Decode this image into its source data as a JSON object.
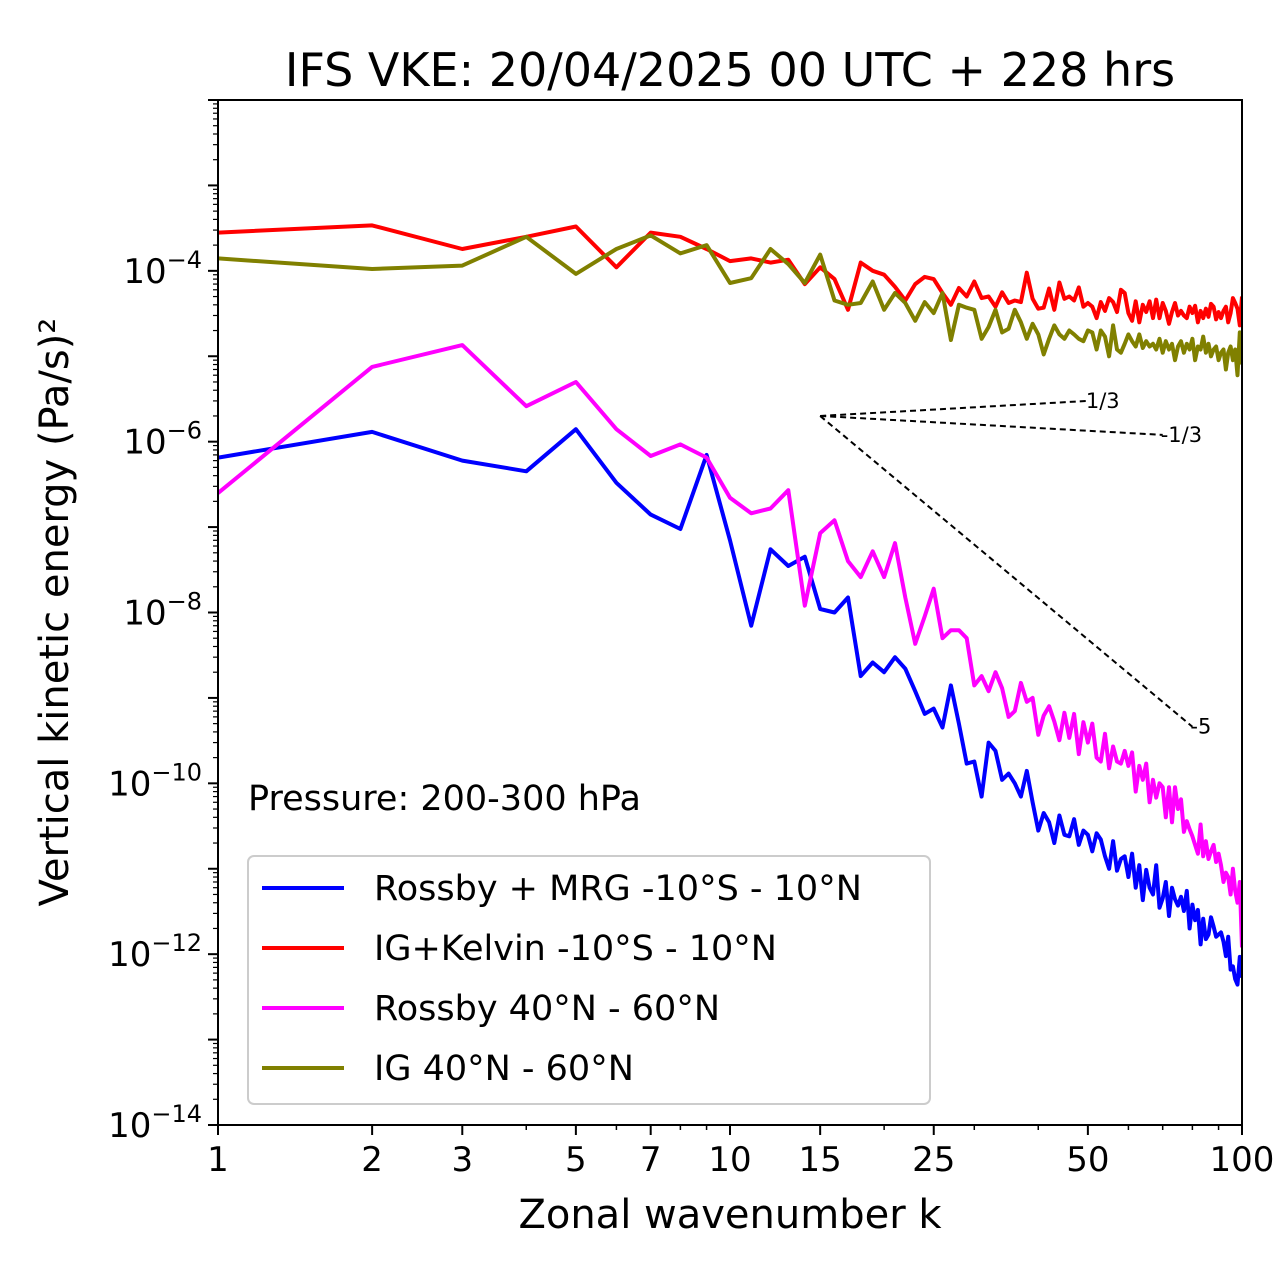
{
  "chart_data": {
    "type": "line",
    "title": "IFS VKE: 20/04/2025 00 UTC + 228 hrs",
    "xlabel": "Zonal wavenumber k",
    "ylabel": "Vertical kinetic energy (Pa/s)²",
    "xscale": "log",
    "yscale": "log",
    "xlim": [
      1,
      100
    ],
    "ylim": [
      1e-14,
      0.01
    ],
    "grid": false,
    "legend_position": "lower-left",
    "x_ticks": [
      {
        "value": 1,
        "label": "1"
      },
      {
        "value": 2,
        "label": "2"
      },
      {
        "value": 3,
        "label": "3"
      },
      {
        "value": 5,
        "label": "5"
      },
      {
        "value": 7,
        "label": "7"
      },
      {
        "value": 10,
        "label": "10"
      },
      {
        "value": 15,
        "label": "15"
      },
      {
        "value": 25,
        "label": "25"
      },
      {
        "value": 50,
        "label": "50"
      },
      {
        "value": 100,
        "label": "100"
      }
    ],
    "y_ticks": [
      {
        "value": -4,
        "base": "10",
        "exp": "−4"
      },
      {
        "value": -6,
        "base": "10",
        "exp": "−6"
      },
      {
        "value": -8,
        "base": "10",
        "exp": "−8"
      },
      {
        "value": -10,
        "base": "10",
        "exp": "−10"
      },
      {
        "value": -12,
        "base": "10",
        "exp": "−12"
      },
      {
        "value": -14,
        "base": "10",
        "exp": "−14"
      }
    ],
    "annotation": "Pressure: 200-300 hPa",
    "reference_lines": [
      {
        "label": "1/3",
        "slope": 0.3333,
        "x": [
          15,
          50
        ],
        "y": [
          2e-06,
          3e-06
        ]
      },
      {
        "label": "-1/3",
        "slope": -0.3333,
        "x": [
          15,
          70
        ],
        "y": [
          2e-06,
          1.2e-06
        ]
      },
      {
        "label": "-5",
        "slope": -5,
        "x": [
          15,
          80
        ],
        "y": [
          2e-06,
          4.6e-10
        ]
      }
    ],
    "series": [
      {
        "name": "Rossby + MRG -10°S - 10°N",
        "color": "#0000ff",
        "x": [
          1,
          2,
          3,
          4,
          5,
          6,
          7,
          8,
          9,
          10,
          11,
          12,
          13,
          14,
          15,
          16,
          17,
          18,
          19,
          20,
          21,
          22,
          23,
          24,
          25,
          26,
          27,
          28,
          29,
          30,
          31,
          32,
          33,
          34,
          35,
          36,
          37,
          38,
          39,
          40,
          41,
          42,
          43,
          44,
          45,
          46,
          47,
          48,
          49,
          50,
          51,
          52,
          53,
          54,
          55,
          56,
          57,
          58,
          59,
          60,
          61,
          62,
          63,
          64,
          65,
          66,
          67,
          68,
          69,
          70,
          71,
          72,
          73,
          74,
          75,
          76,
          77,
          78,
          79,
          80,
          81,
          82,
          83,
          84,
          85,
          86,
          87,
          88,
          89,
          90,
          91,
          92,
          93,
          94,
          95,
          96,
          97,
          98,
          99,
          100
        ],
        "y": [
          6.5e-07,
          1.3e-06,
          6e-07,
          4.5e-07,
          1.4e-06,
          3.3e-07,
          1.4e-07,
          9.5e-08,
          7e-07,
          7e-08,
          7e-09,
          5.5e-08,
          3.5e-08,
          4.5e-08,
          1.1e-08,
          1e-08,
          1.5e-08,
          1.8e-09,
          2.6e-09,
          2e-09,
          3e-09,
          2.2e-09,
          1.2e-09,
          6.5e-10,
          7.5e-10,
          4.5e-10,
          1.4e-09,
          5e-10,
          1.7e-10,
          1.8e-10,
          7e-11,
          3e-10,
          2.4e-10,
          1.1e-10,
          1.3e-10,
          1e-10,
          7e-11,
          1.4e-10,
          6e-11,
          2.8e-11,
          4.5e-11,
          3.5e-11,
          2e-11,
          4.2e-11,
          2.5e-11,
          2.4e-11,
          3.8e-11,
          1.9e-11,
          2.8e-11,
          2.5e-11,
          1.6e-11,
          2.6e-11,
          2.2e-11,
          1.4e-11,
          1e-11,
          2.1e-11,
          9.5e-12,
          1.3e-11,
          1.4e-11,
          8e-12,
          1.5e-11,
          6e-12,
          1.1e-11,
          4.3e-12,
          9.7e-12,
          6e-12,
          5e-12,
          1.1e-11,
          3.5e-12,
          4.5e-12,
          7e-12,
          2.8e-12,
          6e-12,
          4.4e-12,
          3.7e-12,
          4.7e-12,
          3.2e-12,
          5.5e-12,
          2e-12,
          3.8e-12,
          2.5e-12,
          3.3e-12,
          1.3e-12,
          2.6e-12,
          1.5e-12,
          1.7e-12,
          2.7e-12,
          2.1e-12,
          1.6e-12,
          1.7e-12,
          1.8e-12,
          1.4e-12,
          9.5e-13,
          1.6e-12,
          6.6e-13,
          7.2e-13,
          5.1e-13,
          4.4e-13,
          9.3e-13,
          5.3e-13
        ]
      },
      {
        "name": "IG+Kelvin -10°S - 10°N",
        "color": "#ff0000",
        "x": [
          1,
          2,
          3,
          4,
          5,
          6,
          7,
          8,
          9,
          10,
          11,
          12,
          13,
          14,
          15,
          16,
          17,
          18,
          19,
          20,
          21,
          22,
          23,
          24,
          25,
          26,
          27,
          28,
          29,
          30,
          31,
          32,
          33,
          34,
          35,
          36,
          37,
          38,
          39,
          40,
          41,
          42,
          43,
          44,
          45,
          46,
          47,
          48,
          49,
          50,
          51,
          52,
          53,
          54,
          55,
          56,
          57,
          58,
          59,
          60,
          61,
          62,
          63,
          64,
          65,
          66,
          67,
          68,
          69,
          70,
          71,
          72,
          73,
          74,
          75,
          76,
          77,
          78,
          79,
          80,
          81,
          82,
          83,
          84,
          85,
          86,
          87,
          88,
          89,
          90,
          91,
          92,
          93,
          94,
          95,
          96,
          97,
          98,
          99,
          100
        ],
        "y": [
          0.00028,
          0.00034,
          0.00018,
          0.00025,
          0.00033,
          0.00011,
          0.00028,
          0.00025,
          0.00018,
          0.00013,
          0.00014,
          0.000125,
          0.000135,
          7e-05,
          0.00011,
          8e-05,
          3.5e-05,
          0.000125,
          0.0001,
          9e-05,
          6.5e-05,
          4.5e-05,
          7e-05,
          8.5e-05,
          8e-05,
          5.5e-05,
          4e-05,
          6.3e-05,
          5e-05,
          7.5e-05,
          4.8e-05,
          5e-05,
          3.8e-05,
          5.6e-05,
          4.2e-05,
          4.5e-05,
          4.3e-05,
          9.5e-05,
          4.7e-05,
          3.6e-05,
          3.7e-05,
          6.2e-05,
          3.5e-05,
          7.3e-05,
          4.7e-05,
          5e-05,
          4.5e-05,
          6.4e-05,
          3.8e-05,
          4.2e-05,
          3.8e-05,
          2.8e-05,
          4.3e-05,
          3.4e-05,
          4.8e-05,
          4.3e-05,
          3.3e-05,
          6e-05,
          5.5e-05,
          3.2e-05,
          2.6e-05,
          4.4e-05,
          2.5e-05,
          4e-05,
          3.3e-05,
          4.4e-05,
          2.8e-05,
          4.6e-05,
          2.8e-05,
          4.2e-05,
          3.4e-05,
          2.4e-05,
          3.3e-05,
          4.2e-05,
          3e-05,
          3.4e-05,
          3e-05,
          2.8e-05,
          3.8e-05,
          3.2e-05,
          3.9e-05,
          2.5e-05,
          3.4e-05,
          2.8e-05,
          3.6e-05,
          2.9e-05,
          4.1e-05,
          3.8e-05,
          2.7e-05,
          3.3e-05,
          2.8e-05,
          3.4e-05,
          3.8e-05,
          2.5e-05,
          3.2e-05,
          4.8e-05,
          4.2e-05,
          3.6e-05,
          2.3e-05,
          5e-05
        ]
      },
      {
        "name": "Rossby 40°N - 60°N",
        "color": "#ff00ff",
        "x": [
          1,
          2,
          3,
          4,
          5,
          6,
          7,
          8,
          9,
          10,
          11,
          12,
          13,
          14,
          15,
          16,
          17,
          18,
          19,
          20,
          21,
          22,
          23,
          24,
          25,
          26,
          27,
          28,
          29,
          30,
          31,
          32,
          33,
          34,
          35,
          36,
          37,
          38,
          39,
          40,
          41,
          42,
          43,
          44,
          45,
          46,
          47,
          48,
          49,
          50,
          51,
          52,
          53,
          54,
          55,
          56,
          57,
          58,
          59,
          60,
          61,
          62,
          63,
          64,
          65,
          66,
          67,
          68,
          69,
          70,
          71,
          72,
          73,
          74,
          75,
          76,
          77,
          78,
          79,
          80,
          81,
          82,
          83,
          84,
          85,
          86,
          87,
          88,
          89,
          90,
          91,
          92,
          93,
          94,
          95,
          96,
          97,
          98,
          99,
          100
        ],
        "y": [
          2.5e-07,
          7.5e-06,
          1.35e-05,
          2.6e-06,
          5e-06,
          1.4e-06,
          6.8e-07,
          9.3e-07,
          6.5e-07,
          2.2e-07,
          1.45e-07,
          1.65e-07,
          2.7e-07,
          1.2e-08,
          8.5e-08,
          1.2e-07,
          4e-08,
          2.6e-08,
          5.2e-08,
          2.6e-08,
          6.5e-08,
          1.5e-08,
          4.3e-09,
          9e-09,
          1.9e-08,
          5e-09,
          6.2e-09,
          6.2e-09,
          5e-09,
          1.4e-09,
          1.8e-09,
          1.2e-09,
          2e-09,
          1.3e-09,
          6e-10,
          7e-10,
          1.5e-09,
          9e-10,
          1e-09,
          3.7e-10,
          6.2e-10,
          8e-10,
          5.3e-10,
          3.2e-10,
          6.7e-10,
          3.4e-10,
          6.5e-10,
          2.2e-10,
          5.2e-10,
          3e-10,
          5e-10,
          2e-10,
          1.8e-10,
          3.8e-10,
          1.5e-10,
          2.7e-10,
          1.8e-10,
          1.7e-10,
          2.4e-10,
          1.6e-10,
          2.3e-10,
          8e-11,
          1.6e-10,
          1.1e-10,
          1.7e-10,
          6e-11,
          1.1e-10,
          6.8e-11,
          1e-10,
          9e-11,
          4e-11,
          9e-11,
          3.5e-11,
          9e-11,
          5e-11,
          6.5e-11,
          2.7e-11,
          3.6e-11,
          2.9e-11,
          2.4e-11,
          1.9e-11,
          1.5e-11,
          3.3e-11,
          1.4e-11,
          2.1e-11,
          1.3e-11,
          1.6e-11,
          1.9e-11,
          1.2e-11,
          1.5e-11,
          1.1e-11,
          7e-12,
          9e-12,
          8e-12,
          5e-12,
          1e-11,
          5.5e-12,
          4e-12,
          7e-12,
          1.2e-12
        ]
      },
      {
        "name": "IG 40°N - 60°N",
        "color": "#808000",
        "x": [
          1,
          2,
          3,
          4,
          5,
          6,
          7,
          8,
          9,
          10,
          11,
          12,
          13,
          14,
          15,
          16,
          17,
          18,
          19,
          20,
          21,
          22,
          23,
          24,
          25,
          26,
          27,
          28,
          29,
          30,
          31,
          32,
          33,
          34,
          35,
          36,
          37,
          38,
          39,
          40,
          41,
          42,
          43,
          44,
          45,
          46,
          47,
          48,
          49,
          50,
          51,
          52,
          53,
          54,
          55,
          56,
          57,
          58,
          59,
          60,
          61,
          62,
          63,
          64,
          65,
          66,
          67,
          68,
          69,
          70,
          71,
          72,
          73,
          74,
          75,
          76,
          77,
          78,
          79,
          80,
          81,
          82,
          83,
          84,
          85,
          86,
          87,
          88,
          89,
          90,
          91,
          92,
          93,
          94,
          95,
          96,
          97,
          98,
          99,
          100
        ],
        "y": [
          0.00014,
          0.000105,
          0.000115,
          0.00025,
          9.2e-05,
          0.00018,
          0.00026,
          0.00016,
          0.0002,
          7.2e-05,
          8.2e-05,
          0.00018,
          0.00012,
          7.2e-05,
          0.000155,
          4.5e-05,
          4e-05,
          4.2e-05,
          7.5e-05,
          3.5e-05,
          5.5e-05,
          4.2e-05,
          2.6e-05,
          4.3e-05,
          3.2e-05,
          5.5e-05,
          1.55e-05,
          4e-05,
          3.7e-05,
          3.5e-05,
          1.6e-05,
          2.2e-05,
          3.5e-05,
          1.9e-05,
          2.1e-05,
          3.5e-05,
          2.5e-05,
          1.6e-05,
          2.4e-05,
          1.8e-05,
          1.05e-05,
          1.6e-05,
          2.3e-05,
          1.8e-05,
          1.6e-05,
          2e-05,
          1.8e-05,
          1.6e-05,
          1.5e-05,
          2e-05,
          1.9e-05,
          1.2e-05,
          2e-05,
          1.7e-05,
          1e-05,
          2.3e-05,
          1.2e-05,
          1.1e-05,
          1.4e-05,
          1.8e-05,
          1.5e-05,
          1.3e-05,
          1.8e-05,
          1.25e-05,
          1.5e-05,
          1.3e-05,
          1.4e-05,
          1.2e-05,
          1.6e-05,
          1.1e-05,
          1.5e-05,
          1.2e-05,
          1.4e-05,
          9e-06,
          1.3e-05,
          1.5e-05,
          1.1e-05,
          1.4e-05,
          1.2e-05,
          1.6e-05,
          9e-06,
          1.3e-05,
          1.2e-05,
          1.7e-05,
          1.1e-05,
          1.4e-05,
          1e-05,
          1.2e-05,
          1.3e-05,
          9e-06,
          1.1e-05,
          1.2e-05,
          7e-06,
          1.1e-05,
          1.3e-05,
          9e-06,
          1.2e-05,
          6e-06,
          1.9e-05,
          8e-06
        ]
      }
    ]
  }
}
